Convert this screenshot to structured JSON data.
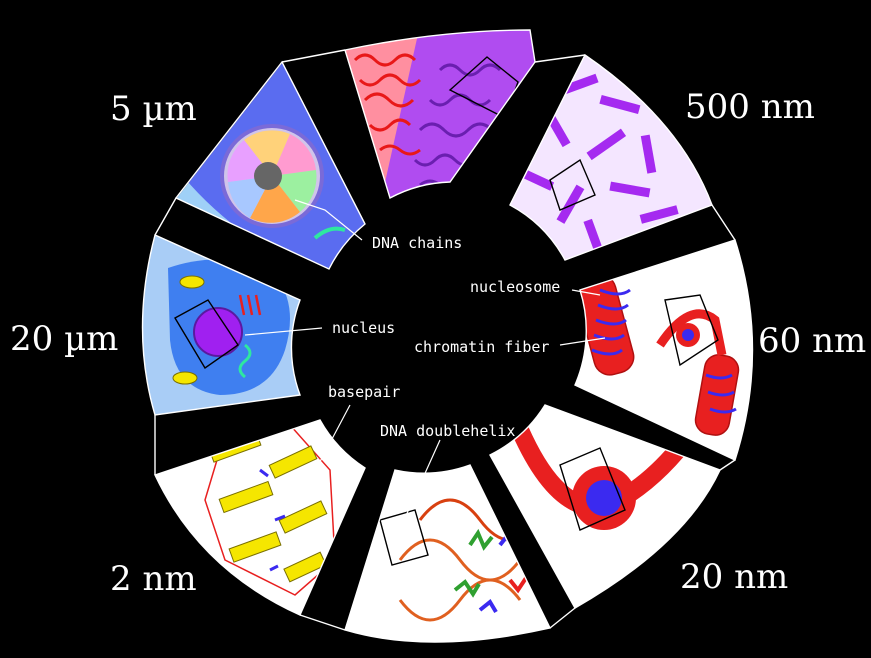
{
  "scales": {
    "s5um": "5 µm",
    "s500nm": "500 nm",
    "s20um": "20 µm",
    "s60nm": "60 nm",
    "s2nm": "2 nm",
    "s20nm": "20 nm"
  },
  "labels": {
    "dna_chains": "DNA chains",
    "nucleosome": "nucleosome",
    "nucleus": "nucleus",
    "chromatin_fiber": "chromatin fiber",
    "basepair": "basepair",
    "dna_doublehelix": "DNA doublehelix"
  },
  "colors": {
    "background": "#000000",
    "cell_blue": "#5a6cf0",
    "cell_light_blue": "#a9cdf6",
    "tissue_blue": "#3f7ff0",
    "nucleus_purple": "#a020f0",
    "chromosome_purple": "#9f2ce8",
    "chromatin_red": "#e81818",
    "nucleosome_red": "#e82020",
    "histone_blue": "#3b2af0",
    "basepair_yellow": "#f5e600",
    "panel_white": "#ffffff"
  }
}
